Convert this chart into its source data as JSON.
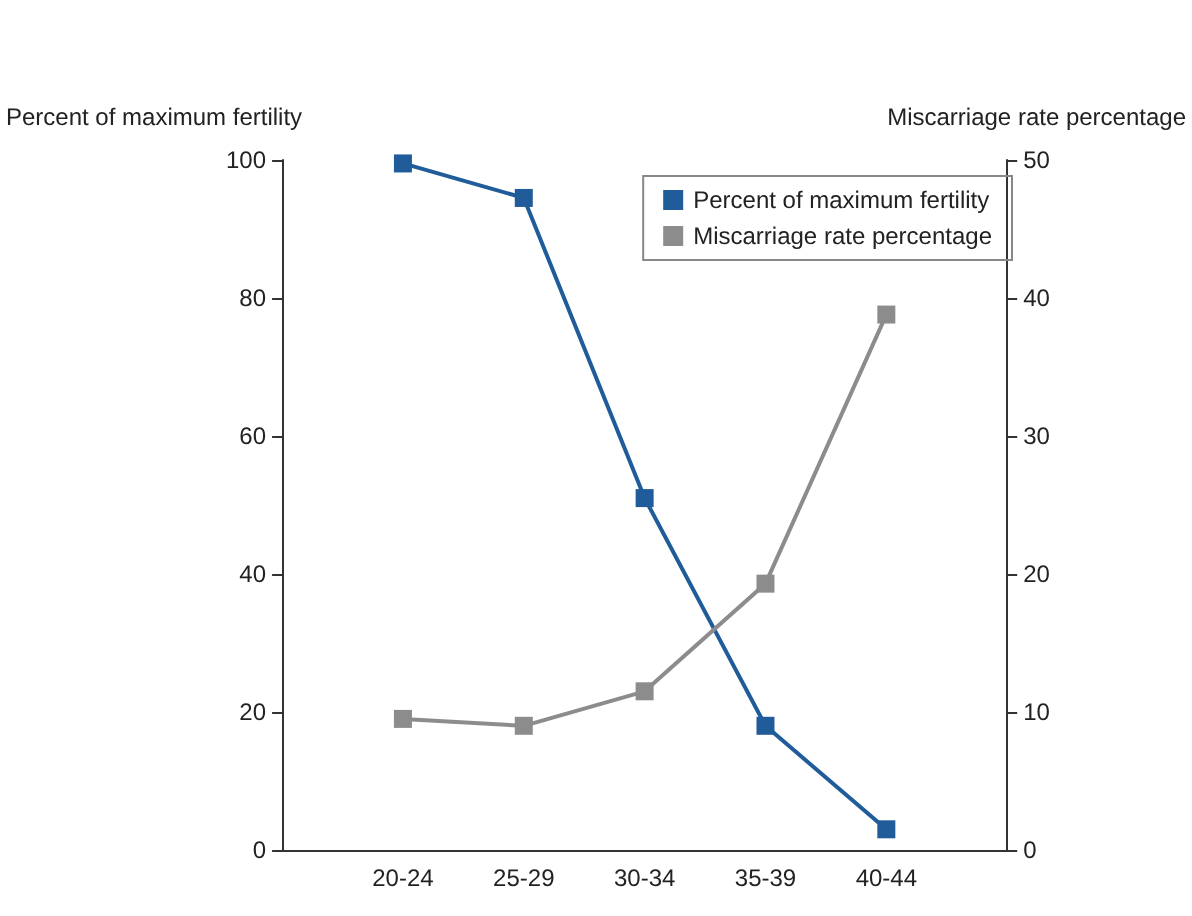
{
  "chart_data": {
    "type": "line",
    "ylabel": "Percent of maximum fertility",
    "y2label": "Miscarriage rate percentage",
    "categories": [
      "20-24",
      "25-29",
      "30-34",
      "35-39",
      "40-44"
    ],
    "series": [
      {
        "name": "Percent of maximum fertility",
        "color": "#1f5c99",
        "values": [
          99.5,
          94.5,
          51,
          18,
          3
        ]
      },
      {
        "name": "Miscarriage rate percentage",
        "color": "#8c8c8c",
        "values": [
          9.5,
          9,
          11.5,
          19.3,
          38.8
        ],
        "axis": "y2"
      }
    ],
    "ylim": [
      0,
      100
    ],
    "yticks": [
      0,
      20,
      40,
      60,
      80,
      100
    ],
    "y2lim": [
      0,
      50
    ],
    "y2ticks": [
      0,
      10,
      20,
      30,
      40,
      50
    ],
    "grid": false,
    "legend": "top right",
    "marker": "square",
    "line_style": "solid"
  }
}
